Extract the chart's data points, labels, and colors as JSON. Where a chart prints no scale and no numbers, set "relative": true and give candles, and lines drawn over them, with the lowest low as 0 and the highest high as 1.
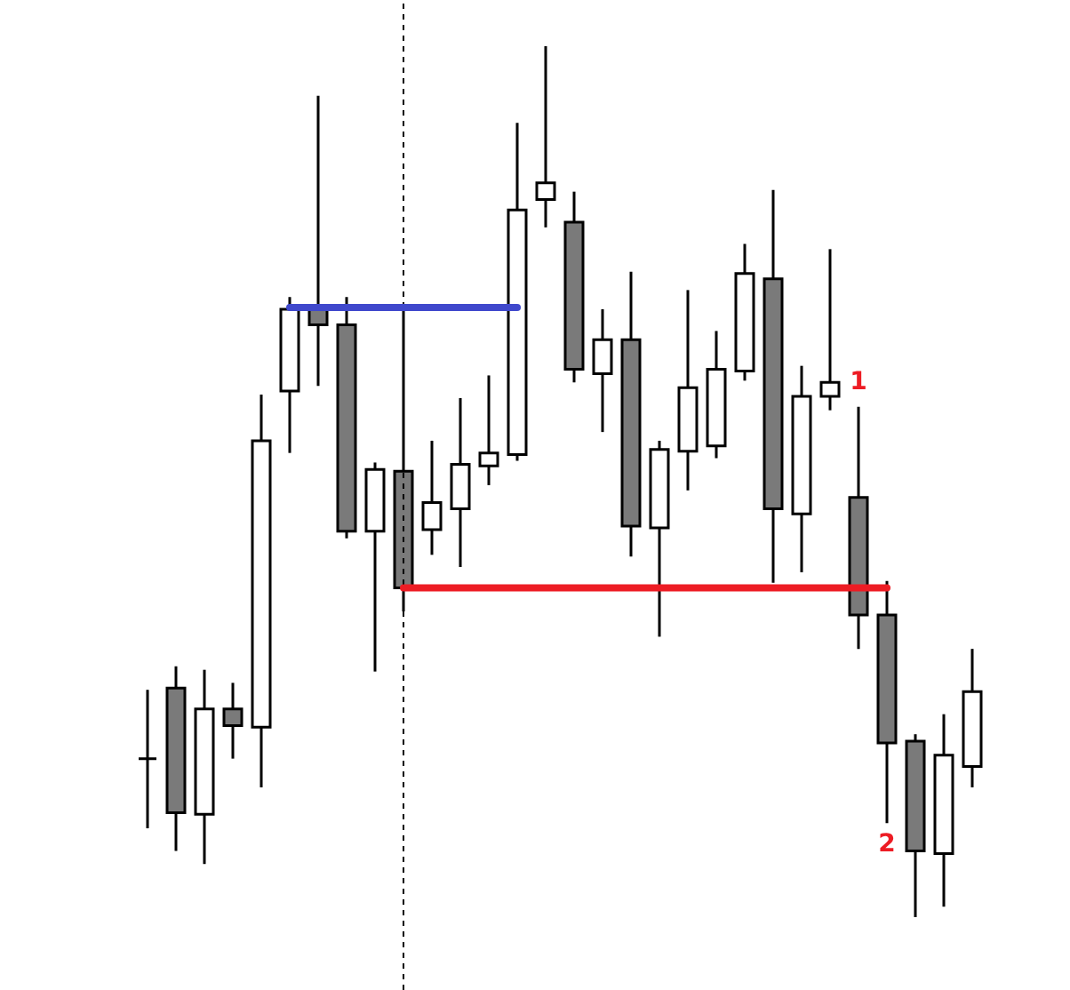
{
  "chart_data": {
    "type": "candlestick",
    "relative": true,
    "categories": [
      null,
      null,
      null,
      null,
      null,
      null,
      null,
      null,
      null,
      null,
      null,
      null,
      null,
      null,
      null,
      null,
      null,
      null,
      null,
      null,
      null,
      null,
      null,
      null,
      null,
      null,
      null,
      null,
      null,
      null
    ],
    "ohlc": [
      [
        0.182,
        0.261,
        0.102,
        0.182
      ],
      [
        0.263,
        0.288,
        0.076,
        0.12
      ],
      [
        0.118,
        0.284,
        0.061,
        0.239
      ],
      [
        0.239,
        0.269,
        0.182,
        0.22
      ],
      [
        0.218,
        0.6,
        0.149,
        0.547
      ],
      [
        0.604,
        0.712,
        0.533,
        0.698
      ],
      [
        0.698,
        0.943,
        0.61,
        0.68
      ],
      [
        0.68,
        0.712,
        0.435,
        0.443
      ],
      [
        0.443,
        0.522,
        0.282,
        0.514
      ],
      [
        0.512,
        0.7,
        0.351,
        0.378
      ],
      [
        0.445,
        0.547,
        0.416,
        0.476
      ],
      [
        0.469,
        0.596,
        0.402,
        0.52
      ],
      [
        0.518,
        0.622,
        0.496,
        0.533
      ],
      [
        0.531,
        0.912,
        0.524,
        0.812
      ],
      [
        0.824,
        1,
        0.792,
        0.843
      ],
      [
        0.798,
        0.833,
        0.614,
        0.629
      ],
      [
        0.624,
        0.698,
        0.557,
        0.663
      ],
      [
        0.663,
        0.741,
        0.414,
        0.449
      ],
      [
        0.447,
        0.547,
        0.322,
        0.537
      ],
      [
        0.535,
        0.72,
        0.49,
        0.608
      ],
      [
        0.541,
        0.673,
        0.527,
        0.629
      ],
      [
        0.627,
        0.773,
        0.616,
        0.739
      ],
      [
        0.733,
        0.835,
        0.384,
        0.469
      ],
      [
        0.463,
        0.633,
        0.396,
        0.598
      ],
      [
        0.598,
        0.767,
        0.582,
        0.614
      ],
      [
        0.482,
        0.586,
        0.308,
        0.347
      ],
      [
        0.347,
        0.386,
        0.108,
        0.2
      ],
      [
        0.202,
        0.21,
        0,
        0.076
      ],
      [
        0.073,
        0.233,
        0.012,
        0.186
      ],
      [
        0.173,
        0.308,
        0.149,
        0.259
      ]
    ],
    "series": [
      {
        "type": "line",
        "color": "#3f48cc",
        "values": [
          null,
          null,
          null,
          null,
          null,
          0.7,
          0.7,
          0.7,
          0.7,
          0.7,
          0.7,
          0.7,
          0.7,
          0.7,
          null,
          null,
          null,
          null,
          null,
          null,
          null,
          null,
          null,
          null,
          null,
          null,
          null,
          null,
          null,
          null
        ]
      },
      {
        "type": "line",
        "color": "#ed1c24",
        "values": [
          null,
          null,
          null,
          null,
          null,
          null,
          null,
          null,
          null,
          0.378,
          0.378,
          0.378,
          0.378,
          0.378,
          0.378,
          0.378,
          0.378,
          0.378,
          0.378,
          0.378,
          0.378,
          0.378,
          0.378,
          0.378,
          0.378,
          0.378,
          0.378,
          null,
          null,
          null
        ]
      }
    ],
    "annotations": [
      "1",
      "2"
    ]
  }
}
